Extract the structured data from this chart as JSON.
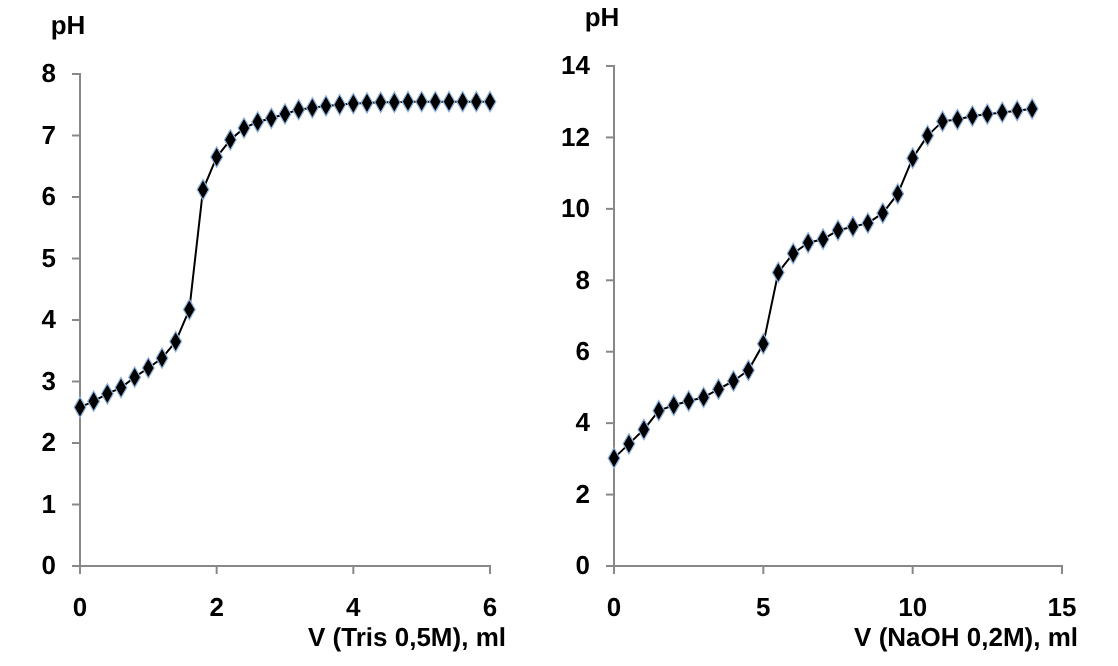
{
  "chart_data": [
    {
      "type": "line",
      "xlabel": "V (Tris 0,5M), ml",
      "ylabel": "pH",
      "marker": "diamond",
      "line_style": "solid",
      "grid": false,
      "xlim": [
        0,
        6
      ],
      "xticks": [
        0,
        2,
        4,
        6
      ],
      "ylim": [
        0,
        8
      ],
      "yticks": [
        0,
        1,
        2,
        3,
        4,
        5,
        6,
        7,
        8
      ],
      "series": [
        {
          "color": "#000000",
          "x": [
            0,
            0.2,
            0.4,
            0.6,
            0.8,
            1.0,
            1.2,
            1.4,
            1.6,
            1.8,
            2.0,
            2.2,
            2.4,
            2.6,
            2.8,
            3.0,
            3.2,
            3.4,
            3.6,
            3.8,
            4.0,
            4.2,
            4.4,
            4.6,
            4.8,
            5.0,
            5.2,
            5.4,
            5.6,
            5.8,
            6.0
          ],
          "values": [
            2.58,
            2.68,
            2.8,
            2.9,
            3.07,
            3.22,
            3.38,
            3.65,
            4.17,
            6.12,
            6.65,
            6.93,
            7.12,
            7.22,
            7.28,
            7.35,
            7.42,
            7.45,
            7.48,
            7.5,
            7.52,
            7.53,
            7.54,
            7.54,
            7.55,
            7.55,
            7.55,
            7.55,
            7.55,
            7.55,
            7.55
          ]
        }
      ]
    },
    {
      "type": "line",
      "xlabel": "V (NaOH 0,2M), ml",
      "ylabel": "pH",
      "marker": "diamond",
      "line_style": "solid",
      "grid": false,
      "xlim": [
        0,
        15
      ],
      "xticks": [
        0,
        5,
        10,
        15
      ],
      "ylim": [
        0,
        14
      ],
      "yticks": [
        0,
        2,
        4,
        6,
        8,
        10,
        12,
        14
      ],
      "series": [
        {
          "color": "#000000",
          "x": [
            0,
            0.5,
            1,
            1.5,
            2,
            2.5,
            3,
            3.5,
            4,
            4.5,
            5,
            5.5,
            6,
            6.5,
            7,
            7.5,
            8,
            8.5,
            9,
            9.5,
            10,
            10.5,
            11,
            11.5,
            12,
            12.5,
            13,
            13.5,
            14
          ],
          "values": [
            3.02,
            3.42,
            3.82,
            4.35,
            4.5,
            4.62,
            4.72,
            4.95,
            5.18,
            5.48,
            6.22,
            8.22,
            8.75,
            9.05,
            9.15,
            9.4,
            9.5,
            9.6,
            9.88,
            10.42,
            11.42,
            12.05,
            12.45,
            12.5,
            12.6,
            12.65,
            12.7,
            12.75,
            12.8
          ]
        }
      ]
    }
  ]
}
